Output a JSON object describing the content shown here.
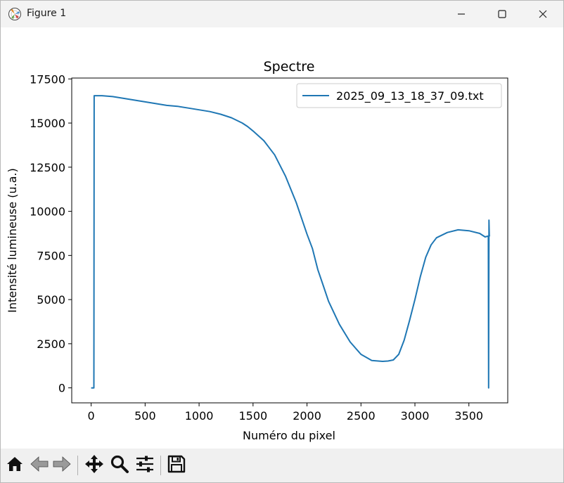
{
  "window": {
    "title": "Figure 1",
    "app_icon": "matplotlib-icon",
    "controls": [
      "minimize-icon",
      "maximize-icon",
      "close-icon"
    ]
  },
  "toolbar": {
    "buttons": [
      {
        "name": "home",
        "icon": "home-icon"
      },
      {
        "name": "back",
        "icon": "back-arrow-icon"
      },
      {
        "name": "forward",
        "icon": "forward-arrow-icon"
      },
      {
        "name": "pan",
        "icon": "move-icon"
      },
      {
        "name": "zoom",
        "icon": "magnifier-icon"
      },
      {
        "name": "configure-subplots",
        "icon": "sliders-icon"
      },
      {
        "name": "save",
        "icon": "floppy-icon"
      }
    ]
  },
  "chart_data": {
    "type": "line",
    "title": "Spectre",
    "xlabel": "Numéro du pixel",
    "ylabel": "Intensité lumineuse (u.a.)",
    "xlim": [
      -180,
      3860
    ],
    "ylim": [
      -850,
      17550
    ],
    "xticks": [
      0,
      500,
      1000,
      1500,
      2000,
      2500,
      3000,
      3500
    ],
    "yticks": [
      0,
      2500,
      5000,
      7500,
      10000,
      12500,
      15000,
      17500
    ],
    "xtick_labels": [
      "0",
      "500",
      "1000",
      "1500",
      "2000",
      "2500",
      "3000",
      "3500"
    ],
    "ytick_labels": [
      "0",
      "2500",
      "5000",
      "7500",
      "10000",
      "12500",
      "15000",
      "17500"
    ],
    "legend": {
      "position": "top-right",
      "entries": [
        "2025_09_13_18_37_09.txt"
      ]
    },
    "line_color": "#1f77b4",
    "grid": false,
    "series": [
      {
        "name": "2025_09_13_18_37_09.txt",
        "x": [
          0,
          25,
          28,
          31,
          100,
          200,
          300,
          400,
          500,
          600,
          700,
          800,
          900,
          1000,
          1100,
          1200,
          1300,
          1400,
          1450,
          1500,
          1600,
          1700,
          1800,
          1900,
          1950,
          2000,
          2050,
          2100,
          2150,
          2200,
          2300,
          2400,
          2500,
          2600,
          2700,
          2750,
          2800,
          2850,
          2900,
          2950,
          3000,
          3050,
          3100,
          3150,
          3200,
          3300,
          3400,
          3500,
          3600,
          3650,
          3680,
          3683,
          3686,
          3689,
          3692
        ],
        "y": [
          0,
          0,
          16550,
          16550,
          16550,
          16500,
          16400,
          16300,
          16200,
          16100,
          16000,
          15950,
          15850,
          15750,
          15650,
          15500,
          15300,
          15000,
          14800,
          14550,
          14000,
          13200,
          12000,
          10500,
          9600,
          8700,
          7900,
          6700,
          5800,
          4900,
          3600,
          2600,
          1900,
          1550,
          1500,
          1520,
          1580,
          1900,
          2700,
          3800,
          5000,
          6300,
          7400,
          8100,
          8500,
          8800,
          8950,
          8900,
          8750,
          8550,
          8600,
          0,
          9500,
          8600,
          8650
        ]
      }
    ]
  }
}
